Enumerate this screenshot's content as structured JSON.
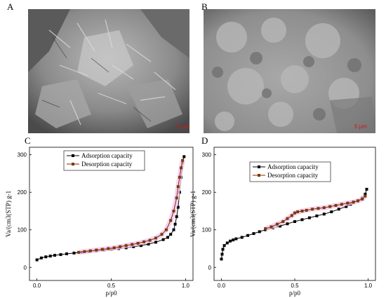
{
  "panels": {
    "a": {
      "letter": "A",
      "scale_bar": "5 μm"
    },
    "b": {
      "letter": "B",
      "scale_bar": "5 μm"
    },
    "c": {
      "letter": "C"
    },
    "d": {
      "letter": "D"
    }
  },
  "colors": {
    "adsorption": "#000000",
    "desorption": "#8b2500",
    "desorption_marker": "#7a3b00",
    "glow": "#f3c8f3"
  },
  "chart_data": [
    {
      "type": "scatter",
      "panel": "C",
      "xlabel": "p/p0",
      "ylabel": "Va/(cm3(STP) g-1",
      "xlim": [
        -0.05,
        1.05
      ],
      "ylim": [
        -35,
        320
      ],
      "xticks": [
        0.0,
        0.5,
        1.0
      ],
      "yticks": [
        0,
        100,
        200,
        300
      ],
      "xtick_labels": [
        "0.0",
        "0.5",
        "1.0"
      ],
      "ytick_labels": [
        "0",
        "100",
        "200",
        "300"
      ],
      "legend": "top-left",
      "series": [
        {
          "name": "Adsorption capacity",
          "marker": "square",
          "x": [
            0.0,
            0.03,
            0.06,
            0.09,
            0.12,
            0.16,
            0.2,
            0.25,
            0.3,
            0.35,
            0.4,
            0.45,
            0.5,
            0.55,
            0.6,
            0.65,
            0.7,
            0.75,
            0.8,
            0.85,
            0.88,
            0.9,
            0.92,
            0.93,
            0.94,
            0.95,
            0.96,
            0.97,
            0.98,
            0.99
          ],
          "y": [
            20,
            25,
            28,
            30,
            32,
            34,
            36,
            38,
            40,
            42,
            44,
            46,
            48,
            50,
            52,
            55,
            58,
            62,
            67,
            74,
            80,
            88,
            100,
            115,
            135,
            160,
            200,
            240,
            280,
            295
          ]
        },
        {
          "name": "Desorption capacity",
          "marker": "square",
          "x": [
            0.28,
            0.32,
            0.36,
            0.4,
            0.44,
            0.48,
            0.52,
            0.56,
            0.6,
            0.64,
            0.68,
            0.72,
            0.76,
            0.8,
            0.84,
            0.87,
            0.9,
            0.92,
            0.94,
            0.95,
            0.96,
            0.97,
            0.98
          ],
          "y": [
            40,
            42,
            44,
            46,
            48,
            50,
            52,
            55,
            58,
            61,
            64,
            68,
            72,
            78,
            88,
            100,
            125,
            150,
            185,
            215,
            240,
            265,
            285
          ]
        }
      ]
    },
    {
      "type": "scatter",
      "panel": "D",
      "xlabel": "p/p0",
      "ylabel": "Va/(cm3(STP) g-1",
      "xlim": [
        -0.05,
        1.05
      ],
      "ylim": [
        -35,
        320
      ],
      "xticks": [
        0.0,
        0.5,
        1.0
      ],
      "yticks": [
        0,
        100,
        200,
        300
      ],
      "xtick_labels": [
        "0.0",
        "0.5",
        "1.0"
      ],
      "ytick_labels": [
        "0",
        "100",
        "200",
        "300"
      ],
      "legend": "top-center",
      "series": [
        {
          "name": "Adsorption capacity",
          "marker": "square",
          "x": [
            0.0,
            0.005,
            0.01,
            0.02,
            0.04,
            0.06,
            0.08,
            0.1,
            0.14,
            0.18,
            0.22,
            0.26,
            0.3,
            0.35,
            0.4,
            0.45,
            0.5,
            0.55,
            0.6,
            0.65,
            0.7,
            0.75,
            0.8,
            0.85,
            0.88,
            0.9,
            0.93,
            0.96,
            0.98,
            0.99
          ],
          "y": [
            22,
            35,
            48,
            58,
            65,
            70,
            73,
            76,
            80,
            85,
            90,
            95,
            100,
            105,
            110,
            116,
            122,
            127,
            132,
            137,
            142,
            148,
            155,
            162,
            168,
            172,
            178,
            185,
            195,
            208
          ]
        },
        {
          "name": "Desorption capacity",
          "marker": "square",
          "x": [
            0.3,
            0.34,
            0.38,
            0.42,
            0.45,
            0.48,
            0.5,
            0.52,
            0.55,
            0.58,
            0.62,
            0.66,
            0.7,
            0.74,
            0.78,
            0.82,
            0.86,
            0.9,
            0.93,
            0.96,
            0.98
          ],
          "y": [
            103,
            108,
            115,
            122,
            130,
            138,
            145,
            148,
            150,
            152,
            155,
            157,
            159,
            162,
            165,
            168,
            171,
            174,
            177,
            182,
            190
          ]
        }
      ]
    }
  ]
}
